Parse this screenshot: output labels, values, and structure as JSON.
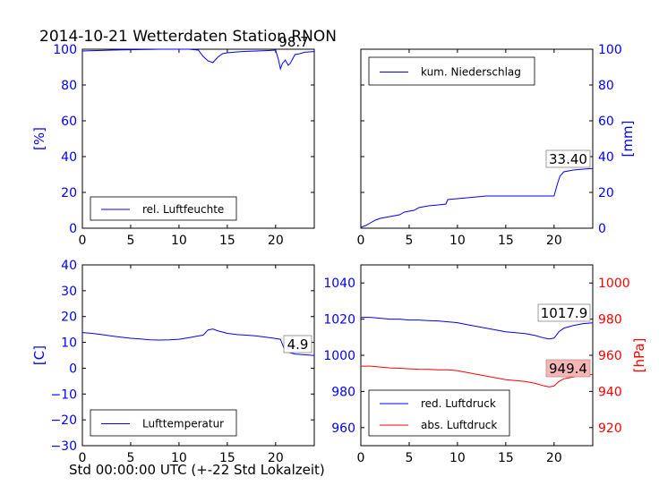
{
  "title": "2014-10-21 Wetterdaten Station RNON",
  "xlabel": "Std 00:00:00 UTC (+-22 Std Lokalzeit)",
  "colors": {
    "blue": "#0000ff",
    "red": "#ff0000",
    "axis": "#000000",
    "annotation_bg": "#f4b6b6"
  },
  "chart_data": [
    {
      "id": "humidity",
      "type": "line",
      "title": "",
      "xlabel": "",
      "ylabel": "[%]",
      "ylabel_side": "left",
      "xlim": [
        0,
        24
      ],
      "ylim": [
        0,
        100
      ],
      "xticks": [
        "0",
        "5",
        "10",
        "15",
        "20"
      ],
      "yticks": [
        "0",
        "20",
        "40",
        "60",
        "80",
        "100"
      ],
      "legend": "bottom-left",
      "annotation": "98.7",
      "series": [
        {
          "name": "rel. Luftfeuchte",
          "color": "#0000ff",
          "x": [
            0,
            1,
            2,
            3,
            4,
            5,
            6,
            7,
            8,
            9,
            10,
            11,
            12,
            12.5,
            13,
            13.5,
            14,
            14.5,
            15,
            16,
            17,
            18,
            19,
            20,
            20.3,
            20.5,
            20.7,
            21,
            21.3,
            21.5,
            21.8,
            22,
            22.5,
            23,
            24
          ],
          "y": [
            99,
            99.2,
            99.3,
            99.5,
            99.6,
            99.7,
            99.8,
            99.9,
            100,
            100,
            100,
            100,
            99.5,
            96,
            93.5,
            92.5,
            95.5,
            97.5,
            98,
            98.5,
            98.8,
            99,
            99.2,
            99.5,
            94,
            89,
            92,
            94,
            91,
            92,
            95,
            97,
            97.5,
            98.3,
            98.7
          ]
        }
      ]
    },
    {
      "id": "precipitation",
      "type": "line",
      "title": "",
      "xlabel": "",
      "ylabel": "[mm]",
      "ylabel_side": "right",
      "xlim": [
        0,
        24
      ],
      "ylim": [
        0,
        100
      ],
      "xticks": [
        "0",
        "5",
        "10",
        "15",
        "20"
      ],
      "yticks": [
        "0",
        "20",
        "40",
        "60",
        "80",
        "100"
      ],
      "legend": "top-left",
      "annotation": "33.40",
      "series": [
        {
          "name": "kum. Niederschlag",
          "color": "#0000ff",
          "x": [
            0,
            0.5,
            1,
            1.5,
            2,
            3,
            4,
            4.5,
            5,
            5.5,
            6,
            7,
            8,
            8.8,
            9,
            10,
            11,
            12,
            13,
            14,
            15,
            16,
            17,
            18,
            19,
            20,
            20.3,
            20.6,
            21,
            22,
            23,
            24
          ],
          "y": [
            0.5,
            1.5,
            3,
            4.5,
            5.5,
            6.5,
            7.5,
            9,
            9.5,
            10,
            11.5,
            12.5,
            13,
            13.5,
            16,
            16.5,
            17,
            17.5,
            18,
            18,
            18,
            18,
            18,
            18,
            18,
            18,
            24,
            29,
            31.5,
            32.5,
            33,
            33.4
          ]
        }
      ]
    },
    {
      "id": "temperature",
      "type": "line",
      "title": "",
      "xlabel": "",
      "ylabel": "[C]",
      "ylabel_side": "left",
      "xlim": [
        0,
        24
      ],
      "ylim": [
        -30,
        40
      ],
      "xticks": [
        "0",
        "5",
        "10",
        "15",
        "20"
      ],
      "yticks": [
        "−30",
        "−20",
        "−10",
        "0",
        "10",
        "20",
        "30",
        "40"
      ],
      "legend": "bottom-left",
      "annotation": "4.9",
      "series": [
        {
          "name": "Lufttemperatur",
          "color": "#0000ff",
          "x": [
            0,
            1,
            2,
            3,
            4,
            5,
            6,
            7,
            8,
            9,
            10,
            11,
            12,
            12.5,
            13,
            13.5,
            14,
            15,
            16,
            17,
            18,
            19,
            20,
            20.5,
            21,
            22,
            23,
            24
          ],
          "y": [
            13.8,
            13.5,
            13,
            12.5,
            12,
            11.6,
            11.3,
            11,
            10.9,
            11,
            11.2,
            11.8,
            12.5,
            12.8,
            14.8,
            15.2,
            14.5,
            13.5,
            13,
            12.8,
            12.5,
            12,
            11.5,
            11.2,
            6.5,
            5.5,
            5.2,
            4.9
          ]
        }
      ]
    },
    {
      "id": "pressure",
      "type": "line",
      "title": "",
      "xlabel": "",
      "ylabel": "",
      "ylabel_right": "[hPa]",
      "xlim": [
        0,
        24
      ],
      "ylim": [
        950,
        1050
      ],
      "ylim_right": [
        910,
        1010
      ],
      "xticks": [
        "0",
        "5",
        "10",
        "15",
        "20"
      ],
      "yticks": [
        "960",
        "980",
        "1000",
        "1020",
        "1040"
      ],
      "yticks_right": [
        "920",
        "940",
        "960",
        "980",
        "1000"
      ],
      "legend": "bottom-left",
      "annotation": "1017.9",
      "annotation_right": "949.4",
      "series": [
        {
          "name": "red. Luftdruck",
          "color": "#0000ff",
          "axis": "left",
          "x": [
            0,
            1,
            2,
            3,
            4,
            5,
            6,
            7,
            8,
            9,
            10,
            11,
            12,
            13,
            14,
            15,
            16,
            17,
            18,
            19,
            19.5,
            20,
            20.5,
            21,
            22,
            23,
            24
          ],
          "y": [
            1021,
            1021,
            1020.5,
            1020,
            1020,
            1019.5,
            1019.5,
            1019.2,
            1019,
            1018.5,
            1018,
            1017,
            1016,
            1015,
            1014,
            1013,
            1012.5,
            1012,
            1011,
            1009.5,
            1009,
            1009.5,
            1013,
            1015,
            1016.5,
            1017.5,
            1017.9
          ]
        },
        {
          "name": "abs. Luftdruck",
          "color": "#ff0000",
          "axis": "right",
          "x": [
            0,
            1,
            2,
            3,
            4,
            5,
            6,
            7,
            8,
            9,
            10,
            11,
            12,
            13,
            14,
            15,
            16,
            17,
            18,
            19,
            19.5,
            20,
            20.5,
            21,
            22,
            23,
            24
          ],
          "y": [
            954,
            954,
            953.5,
            953,
            952.8,
            952.5,
            952.3,
            952.2,
            952,
            952,
            951.5,
            950.5,
            949.5,
            948.5,
            947.5,
            946.5,
            946,
            945.5,
            944.5,
            943,
            942.5,
            943,
            945.5,
            947,
            948,
            949,
            949.4
          ]
        }
      ]
    }
  ]
}
